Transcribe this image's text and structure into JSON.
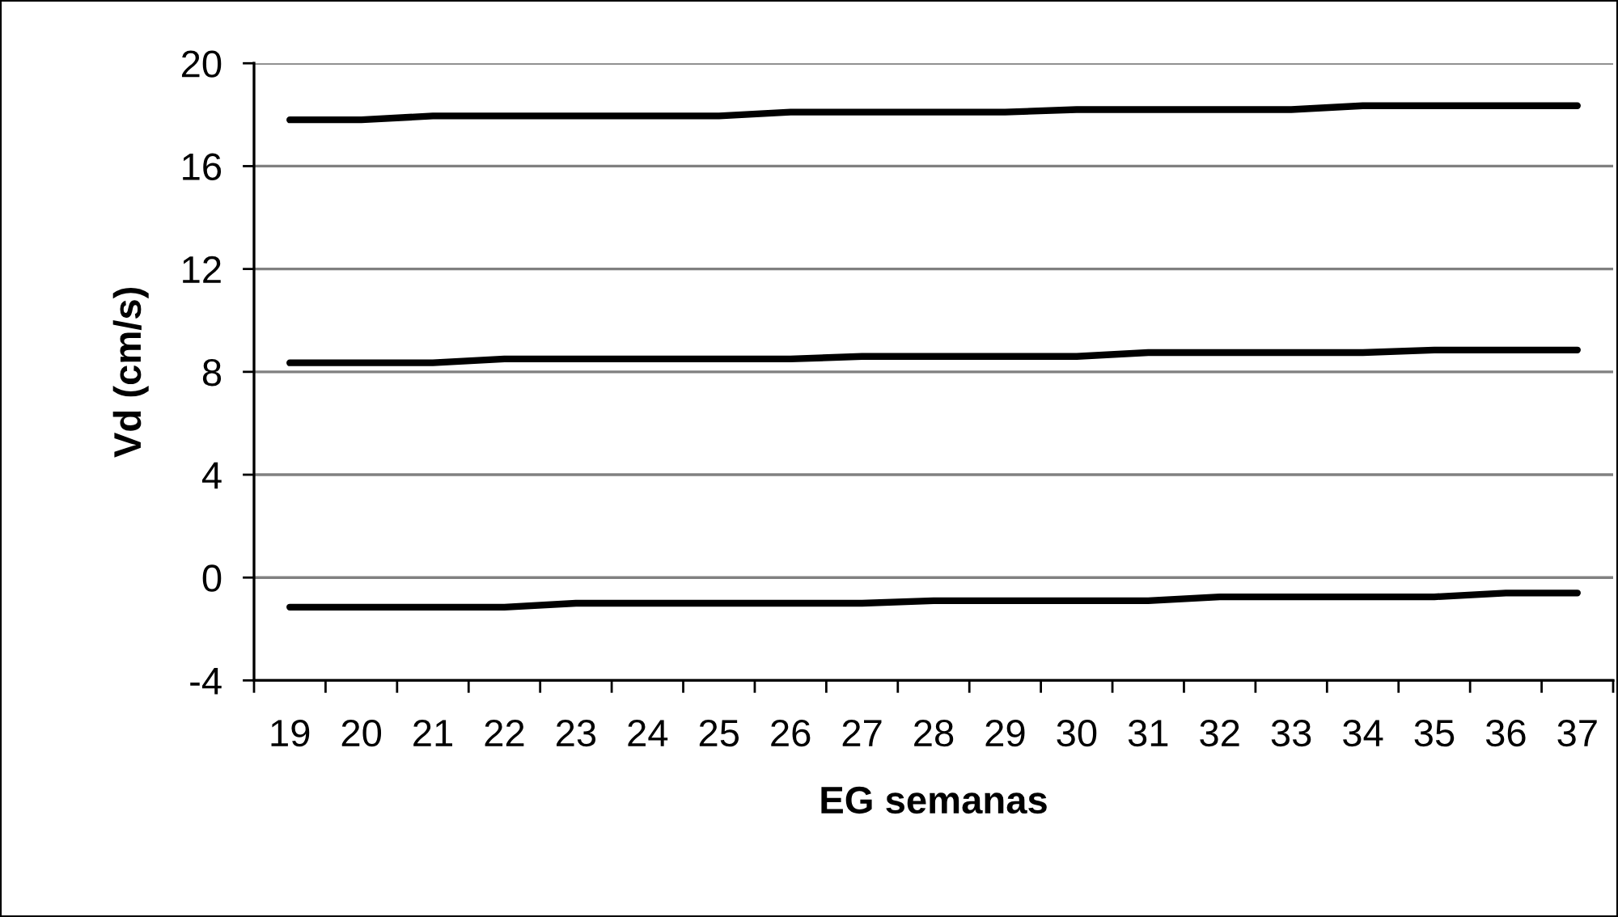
{
  "chart_data": {
    "type": "line",
    "xlabel": "EG semanas",
    "ylabel": "Vd (cm/s)",
    "categories": [
      "19",
      "20",
      "21",
      "22",
      "23",
      "24",
      "25",
      "26",
      "27",
      "28",
      "29",
      "30",
      "31",
      "32",
      "33",
      "34",
      "35",
      "36",
      "37"
    ],
    "series": [
      {
        "color": "#000000",
        "values": [
          17.8,
          17.8,
          17.95,
          17.95,
          17.95,
          17.95,
          17.95,
          18.1,
          18.1,
          18.1,
          18.1,
          18.2,
          18.2,
          18.2,
          18.2,
          18.35,
          18.35,
          18.35,
          18.35
        ]
      },
      {
        "color": "#000000",
        "values": [
          8.35,
          8.35,
          8.35,
          8.5,
          8.5,
          8.5,
          8.5,
          8.5,
          8.6,
          8.6,
          8.6,
          8.6,
          8.75,
          8.75,
          8.75,
          8.75,
          8.85,
          8.85,
          8.85
        ]
      },
      {
        "color": "#000000",
        "values": [
          -1.15,
          -1.15,
          -1.15,
          -1.15,
          -1.0,
          -1.0,
          -1.0,
          -1.0,
          -1.0,
          -0.9,
          -0.9,
          -0.9,
          -0.9,
          -0.75,
          -0.75,
          -0.75,
          -0.75,
          -0.6,
          -0.6
        ]
      }
    ],
    "ylim": [
      -4,
      20
    ],
    "yticks": [
      -4,
      0,
      4,
      8,
      12,
      16,
      20
    ],
    "grid": "y",
    "line_style": "solid"
  }
}
